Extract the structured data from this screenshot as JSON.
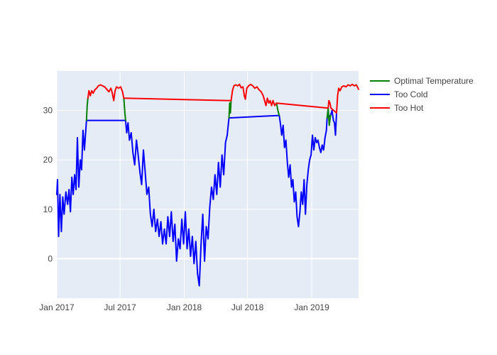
{
  "chart_data": {
    "type": "line",
    "title": "",
    "xlabel": "",
    "ylabel": "",
    "xlim": [
      "2017-01-01",
      "2019-05-15"
    ],
    "ylim": [
      -8,
      38
    ],
    "x_ticks": [
      {
        "date": "2017-01-01",
        "label": "Jan 2017"
      },
      {
        "date": "2017-07-01",
        "label": "Jul 2017"
      },
      {
        "date": "2018-01-01",
        "label": "Jan 2018"
      },
      {
        "date": "2018-07-01",
        "label": "Jul 2018"
      },
      {
        "date": "2019-01-01",
        "label": "Jan 2019"
      }
    ],
    "y_ticks": [
      0,
      10,
      20,
      30
    ],
    "grid": true,
    "legend_position": "top-right",
    "plot_background": "#e5ecf6",
    "series": [
      {
        "name": "Optimal Temperature",
        "color": "#008000",
        "segments": [
          [
            [
              "2017-03-27",
              28.0
            ],
            [
              "2017-03-29",
              31.0
            ],
            [
              "2017-03-31",
              32.5
            ]
          ],
          [
            [
              "2017-07-12",
              32.5
            ],
            [
              "2017-07-15",
              29.5
            ],
            [
              "2017-07-17",
              28.0
            ]
          ],
          [
            [
              "2018-05-09",
              28.5
            ],
            [
              "2018-05-11",
              31.5
            ],
            [
              "2018-05-13",
              29.5
            ],
            [
              "2018-05-15",
              32.0
            ]
          ],
          [
            [
              "2018-09-22",
              31.5
            ],
            [
              "2018-09-26",
              30.0
            ],
            [
              "2018-09-30",
              29.0
            ]
          ],
          [
            [
              "2019-02-14",
              28.5
            ],
            [
              "2019-02-17",
              30.5
            ],
            [
              "2019-02-20",
              27.0
            ],
            [
              "2019-02-24",
              29.0
            ]
          ]
        ]
      },
      {
        "name": "Too Cold",
        "color": "#0000ff",
        "points": [
          [
            "2017-01-01",
            13.0
          ],
          [
            "2017-01-03",
            16.0
          ],
          [
            "2017-01-06",
            4.5
          ],
          [
            "2017-01-10",
            13.0
          ],
          [
            "2017-01-14",
            5.5
          ],
          [
            "2017-01-18",
            12.5
          ],
          [
            "2017-01-22",
            9.0
          ],
          [
            "2017-01-27",
            13.5
          ],
          [
            "2017-02-01",
            11.0
          ],
          [
            "2017-02-05",
            14.0
          ],
          [
            "2017-02-09",
            9.5
          ],
          [
            "2017-02-13",
            16.5
          ],
          [
            "2017-02-17",
            13.0
          ],
          [
            "2017-02-21",
            17.0
          ],
          [
            "2017-02-25",
            14.0
          ],
          [
            "2017-03-01",
            24.5
          ],
          [
            "2017-03-05",
            14.5
          ],
          [
            "2017-03-09",
            20.0
          ],
          [
            "2017-03-13",
            18.0
          ],
          [
            "2017-03-17",
            26.0
          ],
          [
            "2017-03-21",
            22.0
          ],
          [
            "2017-03-27",
            28.0
          ],
          [
            "2017-07-17",
            28.0
          ],
          [
            "2017-07-20",
            25.5
          ],
          [
            "2017-07-24",
            27.5
          ],
          [
            "2017-07-28",
            24.0
          ],
          [
            "2017-08-02",
            25.5
          ],
          [
            "2017-08-07",
            21.5
          ],
          [
            "2017-08-12",
            19.0
          ],
          [
            "2017-08-17",
            24.0
          ],
          [
            "2017-08-22",
            21.0
          ],
          [
            "2017-08-27",
            17.5
          ],
          [
            "2017-09-01",
            15.0
          ],
          [
            "2017-09-06",
            22.0
          ],
          [
            "2017-09-11",
            17.5
          ],
          [
            "2017-09-16",
            13.0
          ],
          [
            "2017-09-21",
            14.5
          ],
          [
            "2017-09-26",
            9.0
          ],
          [
            "2017-10-01",
            6.5
          ],
          [
            "2017-10-06",
            10.0
          ],
          [
            "2017-10-11",
            5.5
          ],
          [
            "2017-10-16",
            8.0
          ],
          [
            "2017-10-21",
            4.5
          ],
          [
            "2017-10-26",
            7.5
          ],
          [
            "2017-10-31",
            3.0
          ],
          [
            "2017-11-05",
            6.0
          ],
          [
            "2017-11-10",
            3.0
          ],
          [
            "2017-11-15",
            8.5
          ],
          [
            "2017-11-20",
            4.5
          ],
          [
            "2017-11-25",
            9.5
          ],
          [
            "2017-11-30",
            3.5
          ],
          [
            "2017-12-05",
            7.0
          ],
          [
            "2017-12-10",
            -0.5
          ],
          [
            "2017-12-15",
            4.0
          ],
          [
            "2017-12-20",
            2.0
          ],
          [
            "2017-12-25",
            8.0
          ],
          [
            "2017-12-30",
            3.0
          ],
          [
            "2018-01-04",
            9.5
          ],
          [
            "2018-01-09",
            2.0
          ],
          [
            "2018-01-14",
            6.0
          ],
          [
            "2018-01-19",
            0.5
          ],
          [
            "2018-01-24",
            4.5
          ],
          [
            "2018-01-29",
            -1.0
          ],
          [
            "2018-02-03",
            3.5
          ],
          [
            "2018-02-08",
            -3.0
          ],
          [
            "2018-02-13",
            -5.5
          ],
          [
            "2018-02-18",
            3.0
          ],
          [
            "2018-02-23",
            9.0
          ],
          [
            "2018-02-28",
            -0.5
          ],
          [
            "2018-03-05",
            6.5
          ],
          [
            "2018-03-10",
            4.0
          ],
          [
            "2018-03-15",
            10.5
          ],
          [
            "2018-03-20",
            14.5
          ],
          [
            "2018-03-25",
            12.0
          ],
          [
            "2018-03-30",
            17.0
          ],
          [
            "2018-04-04",
            13.0
          ],
          [
            "2018-04-09",
            19.5
          ],
          [
            "2018-04-14",
            14.5
          ],
          [
            "2018-04-19",
            21.0
          ],
          [
            "2018-04-24",
            17.0
          ],
          [
            "2018-04-29",
            23.5
          ],
          [
            "2018-05-04",
            25.0
          ],
          [
            "2018-05-09",
            28.5
          ],
          [
            "2018-09-30",
            29.0
          ],
          [
            "2018-10-03",
            27.5
          ],
          [
            "2018-10-07",
            25.0
          ],
          [
            "2018-10-11",
            27.0
          ],
          [
            "2018-10-15",
            22.5
          ],
          [
            "2018-10-19",
            24.0
          ],
          [
            "2018-10-23",
            19.5
          ],
          [
            "2018-10-27",
            16.5
          ],
          [
            "2018-10-31",
            19.0
          ],
          [
            "2018-11-04",
            14.5
          ],
          [
            "2018-11-08",
            16.0
          ],
          [
            "2018-11-12",
            11.5
          ],
          [
            "2018-11-16",
            13.5
          ],
          [
            "2018-11-20",
            8.5
          ],
          [
            "2018-11-24",
            6.5
          ],
          [
            "2018-11-28",
            9.5
          ],
          [
            "2018-12-02",
            13.5
          ],
          [
            "2018-12-06",
            11.0
          ],
          [
            "2018-12-10",
            16.0
          ],
          [
            "2018-12-14",
            9.0
          ],
          [
            "2018-12-18",
            15.0
          ],
          [
            "2018-12-22",
            18.0
          ],
          [
            "2018-12-26",
            20.0
          ],
          [
            "2018-12-30",
            21.0
          ],
          [
            "2019-01-03",
            25.0
          ],
          [
            "2019-01-07",
            22.0
          ],
          [
            "2019-01-11",
            24.5
          ],
          [
            "2019-01-15",
            23.5
          ],
          [
            "2019-01-19",
            24.0
          ],
          [
            "2019-01-23",
            22.5
          ],
          [
            "2019-01-27",
            21.5
          ],
          [
            "2019-01-31",
            23.0
          ],
          [
            "2019-02-04",
            22.0
          ],
          [
            "2019-02-08",
            24.5
          ],
          [
            "2019-02-12",
            26.0
          ],
          [
            "2019-02-14",
            28.5
          ],
          [
            "2019-02-24",
            29.0
          ],
          [
            "2019-02-28",
            30.0
          ],
          [
            "2019-03-04",
            28.0
          ],
          [
            "2019-03-07",
            27.5
          ],
          [
            "2019-03-10",
            25.0
          ],
          [
            "2019-03-13",
            29.5
          ]
        ]
      },
      {
        "name": "Too Hot",
        "color": "#ff0000",
        "points": [
          [
            "2017-03-31",
            32.5
          ],
          [
            "2017-04-03",
            34.0
          ],
          [
            "2017-04-07",
            33.0
          ],
          [
            "2017-04-11",
            34.0
          ],
          [
            "2017-04-15",
            33.5
          ],
          [
            "2017-04-20",
            34.2
          ],
          [
            "2017-04-25",
            34.5
          ],
          [
            "2017-04-30",
            35.0
          ],
          [
            "2017-05-06",
            35.2
          ],
          [
            "2017-05-12",
            35.0
          ],
          [
            "2017-05-18",
            34.8
          ],
          [
            "2017-05-24",
            34.3
          ],
          [
            "2017-05-30",
            33.8
          ],
          [
            "2017-06-05",
            34.5
          ],
          [
            "2017-06-09",
            33.5
          ],
          [
            "2017-06-13",
            32.0
          ],
          [
            "2017-06-17",
            34.0
          ],
          [
            "2017-06-21",
            34.8
          ],
          [
            "2017-06-27",
            34.5
          ],
          [
            "2017-07-03",
            34.8
          ],
          [
            "2017-07-08",
            33.8
          ],
          [
            "2017-07-12",
            32.5
          ],
          [
            "2018-05-15",
            32.0
          ],
          [
            "2018-05-19",
            34.0
          ],
          [
            "2018-05-23",
            35.0
          ],
          [
            "2018-05-28",
            35.2
          ],
          [
            "2018-06-03",
            35.0
          ],
          [
            "2018-06-08",
            35.3
          ],
          [
            "2018-06-13",
            34.6
          ],
          [
            "2018-06-18",
            34.8
          ],
          [
            "2018-06-22",
            33.0
          ],
          [
            "2018-06-25",
            32.3
          ],
          [
            "2018-06-29",
            34.5
          ],
          [
            "2018-07-04",
            35.0
          ],
          [
            "2018-07-10",
            35.3
          ],
          [
            "2018-07-16",
            35.0
          ],
          [
            "2018-07-22",
            34.5
          ],
          [
            "2018-07-28",
            34.8
          ],
          [
            "2018-08-03",
            34.2
          ],
          [
            "2018-08-09",
            33.8
          ],
          [
            "2018-08-15",
            33.0
          ],
          [
            "2018-08-19",
            32.0
          ],
          [
            "2018-08-23",
            31.0
          ],
          [
            "2018-08-27",
            32.5
          ],
          [
            "2018-08-31",
            31.5
          ],
          [
            "2018-09-04",
            32.0
          ],
          [
            "2018-09-08",
            31.0
          ],
          [
            "2018-09-12",
            32.0
          ],
          [
            "2018-09-17",
            31.0
          ],
          [
            "2018-09-22",
            31.5
          ],
          [
            "2019-02-17",
            30.5
          ],
          [
            "2019-02-19",
            32.0
          ],
          [
            "2019-02-22",
            31.5
          ],
          [
            "2019-02-25",
            30.5
          ],
          [
            "2019-03-13",
            29.5
          ],
          [
            "2019-03-16",
            33.0
          ],
          [
            "2019-03-19",
            34.5
          ],
          [
            "2019-03-23",
            34.0
          ],
          [
            "2019-03-28",
            34.8
          ],
          [
            "2019-04-03",
            35.0
          ],
          [
            "2019-04-09",
            34.8
          ],
          [
            "2019-04-15",
            35.2
          ],
          [
            "2019-04-21",
            35.0
          ],
          [
            "2019-04-27",
            35.3
          ],
          [
            "2019-05-03",
            35.0
          ],
          [
            "2019-05-09",
            35.2
          ],
          [
            "2019-05-15",
            34.3
          ]
        ]
      }
    ]
  }
}
